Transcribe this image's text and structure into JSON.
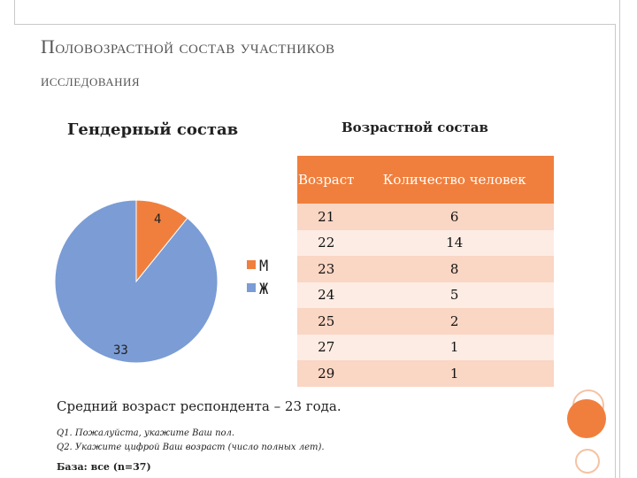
{
  "slide": {
    "title_line1": "Половозрастной состав участников",
    "title_line2": "исследования"
  },
  "gender": {
    "heading": "Гендерный состав"
  },
  "age": {
    "heading": "Возрастной состав"
  },
  "colors": {
    "male": "#f07f3d",
    "female": "#7b9cd5",
    "table_header": "#f07f3d",
    "row_dark": "#fad6c4",
    "row_light": "#fdece4",
    "deco": "#f07f3d"
  },
  "chart_data": [
    {
      "type": "pie",
      "title": "Гендерный состав",
      "categories": [
        "М",
        "Ж"
      ],
      "values": [
        4,
        33
      ],
      "data_labels": [
        "4",
        "33"
      ],
      "legend": {
        "position": "right",
        "entries": [
          "М",
          "Ж"
        ]
      }
    },
    {
      "type": "table",
      "title": "Возрастной состав",
      "columns": [
        "Возраст",
        "Количество человек"
      ],
      "rows": [
        [
          "21",
          "6"
        ],
        [
          "22",
          "14"
        ],
        [
          "23",
          "8"
        ],
        [
          "24",
          "5"
        ],
        [
          "25",
          "2"
        ],
        [
          "27",
          "1"
        ],
        [
          "29",
          "1"
        ]
      ]
    }
  ],
  "footer": {
    "mean_age": "Средний возраст респондента – 23 года.",
    "q1": "Q1. Пожалуйста, укажите Ваш пол.",
    "q2": "Q2. Укажите цифрой Ваш возраст (число полных лет).",
    "base": "База: все (n=37)"
  }
}
